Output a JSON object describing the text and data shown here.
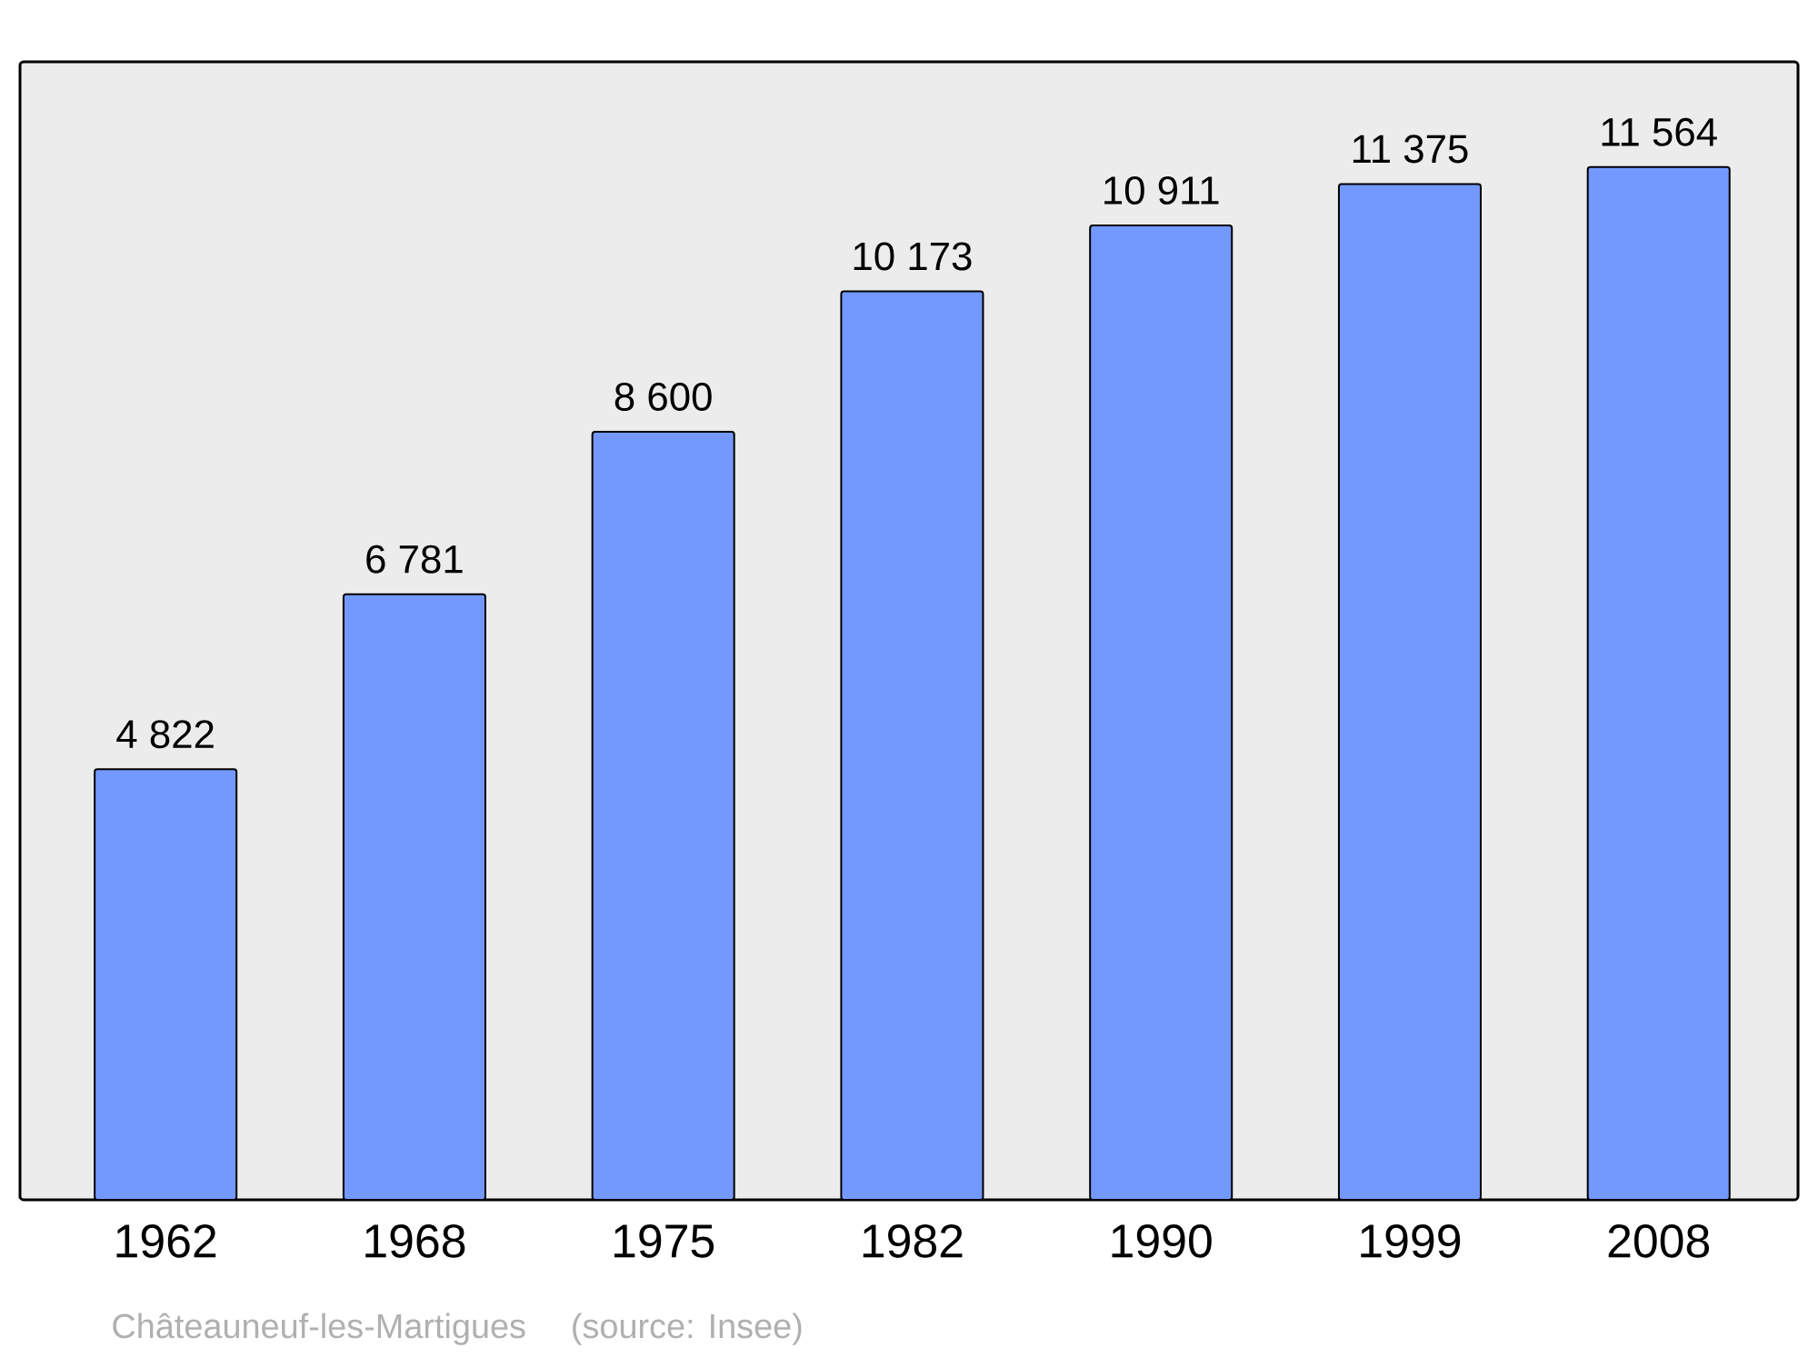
{
  "chart_data": {
    "type": "bar",
    "categories": [
      "1962",
      "1968",
      "1975",
      "1982",
      "1990",
      "1999",
      "2008"
    ],
    "values": [
      4822,
      6781,
      8600,
      10173,
      10911,
      11375,
      11564
    ],
    "value_labels": [
      "4 822",
      "6 781",
      "8 600",
      "10 173",
      "10 911",
      "11 375",
      "11 564"
    ],
    "color": "#7399ff",
    "annotations": [
      "Châteauneuf-les-Martigues",
      "(source: Insee)"
    ]
  }
}
